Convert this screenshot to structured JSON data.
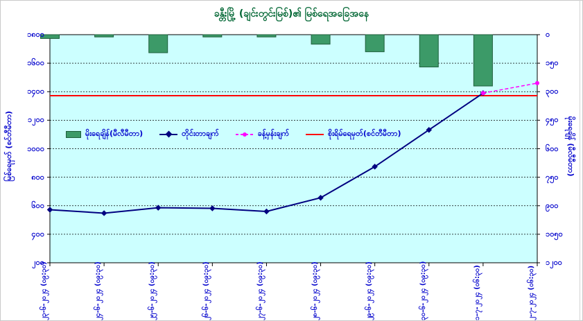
{
  "chart_data": {
    "type": "bar+line",
    "title": "ခန္တီးမြို့ (ချင်းတွင်းမြစ်)၏ မြစ်ရေအခြေအနေ",
    "categories": [
      "၂၃-၆-၂၀၂၄ (၀၉:၃၀)",
      "၂၄-၆-၂၀၂၄ (၀၉:၃၀)",
      "၂၅-၆-၂၀၂၄ (၀၉:၃၀)",
      "၂၆-၆-၂၀၂၄ (၀၉:၃၀)",
      "၂၇-၆-၂၀၂၄ (၀၉:၃၀)",
      "၂၈-၆-၂၀၂၄ (၀၉:၃၀)",
      "၂၉-၆-၂၀၂၄ (၀၉:၃၀)",
      "၃၀-၆-၂၀၂၄ (၀၉:၃၀)",
      "၁-၇-၂၀၂၄ (၀၆:၃၀)",
      "၂-၇-၂၀၂၄ (၀၆:၃၀)"
    ],
    "left_axis": {
      "label": "မြစ်ရေမှတ် (စင်တီမီတာ)",
      "ylim": [
        200,
        1800
      ],
      "ticks": [
        200,
        400,
        600,
        800,
        1000,
        1200,
        1400,
        1600,
        1800
      ],
      "tick_labels": [
        "၂၀၀",
        "၄၀၀",
        "၆၀၀",
        "၈၀၀",
        "၁၀၀၀",
        "၁၂၀၀",
        "၁၄၀၀",
        "၁၆၀၀",
        "၁၈၀၀"
      ]
    },
    "right_axis": {
      "label": "မိုးရေချိန် (မီလီမီတာ)",
      "ylim": [
        1200,
        0
      ],
      "reversed": true,
      "ticks": [
        0,
        150,
        300,
        450,
        600,
        750,
        900,
        1050,
        1200
      ],
      "tick_labels": [
        "၀",
        "၁၅၀",
        "၃၀၀",
        "၄၅၀",
        "၆၀၀",
        "၇၅၀",
        "၉၀၀",
        "၁၀၅၀",
        "၁၂၀၀"
      ]
    },
    "series": [
      {
        "name": "မိုးရေချိန်(မီလီမီတာ)",
        "type": "bar",
        "axis": "right",
        "color": "#3c9a68",
        "values": [
          20,
          12,
          95,
          12,
          12,
          50,
          90,
          170,
          270,
          null
        ]
      },
      {
        "name": "တိုင်းတာချက်",
        "type": "line",
        "axis": "left",
        "color": "#000080",
        "values": [
          572,
          548,
          586,
          582,
          560,
          656,
          874,
          1132,
          1390,
          null
        ]
      },
      {
        "name": "ခန့်မှန်းချက်",
        "type": "line",
        "axis": "left",
        "style": "dashed",
        "color": "#ff00ff",
        "values": [
          null,
          null,
          null,
          null,
          null,
          null,
          null,
          null,
          1390,
          1460
        ]
      },
      {
        "name": "စိုးရိမ်ရေမှတ်(စင်တီမီတာ)",
        "type": "hline",
        "axis": "left",
        "color": "#ff0000",
        "value": 1372
      }
    ],
    "grid": true,
    "legend_position": "center-left"
  }
}
